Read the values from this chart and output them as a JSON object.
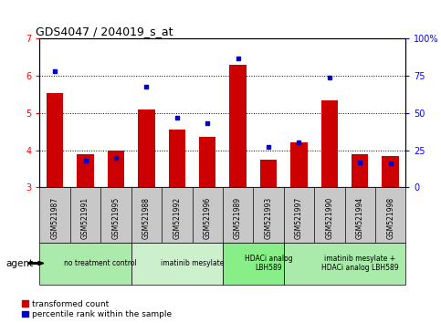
{
  "title": "GDS4047 / 204019_s_at",
  "samples": [
    "GSM521987",
    "GSM521991",
    "GSM521995",
    "GSM521988",
    "GSM521992",
    "GSM521996",
    "GSM521989",
    "GSM521993",
    "GSM521997",
    "GSM521990",
    "GSM521994",
    "GSM521998"
  ],
  "transformed_count": [
    5.55,
    3.9,
    4.0,
    5.1,
    4.55,
    4.35,
    6.3,
    3.75,
    4.2,
    5.35,
    3.9,
    3.85
  ],
  "percentile_rank": [
    78,
    18,
    20,
    68,
    47,
    43,
    87,
    27,
    30,
    74,
    17,
    16
  ],
  "ylim_left": [
    3,
    7
  ],
  "ylim_right": [
    0,
    100
  ],
  "yticks_left": [
    3,
    4,
    5,
    6,
    7
  ],
  "yticks_right": [
    0,
    25,
    50,
    75,
    100
  ],
  "bar_color": "#cc0000",
  "dot_color": "#0000cc",
  "bg_sample_labels": "#c8c8c8",
  "groups": [
    {
      "label": "no treatment control",
      "start": 0,
      "end": 3,
      "color": "#aaeaaa"
    },
    {
      "label": "imatinib mesylate",
      "start": 3,
      "end": 6,
      "color": "#ccf0cc"
    },
    {
      "label": "HDACi analog\nLBH589",
      "start": 6,
      "end": 8,
      "color": "#88ee88"
    },
    {
      "label": "imatinib mesylate +\nHDACi analog LBH589",
      "start": 8,
      "end": 12,
      "color": "#aaeaaa"
    }
  ],
  "agent_label": "agent",
  "legend_red": "transformed count",
  "legend_blue": "percentile rank within the sample",
  "bar_width": 0.55,
  "bar_base": 3.0
}
